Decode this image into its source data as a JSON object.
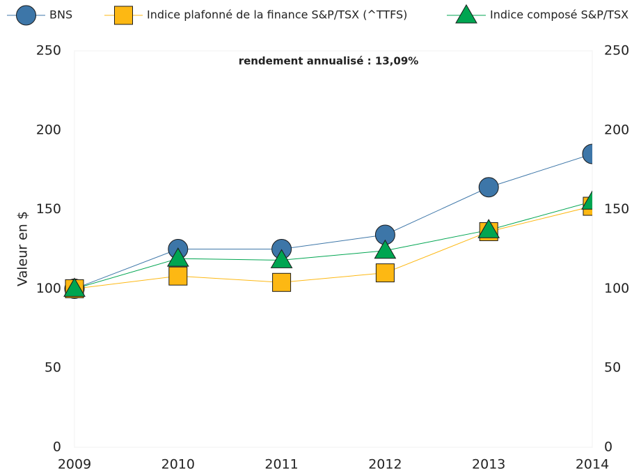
{
  "chart_data": {
    "type": "line",
    "annotation": "rendement annualisé : 13,09%",
    "ylabel": "Valeur en $",
    "categories": [
      "2009",
      "2010",
      "2011",
      "2012",
      "2013",
      "2014"
    ],
    "series": [
      {
        "name": "BNS",
        "color": "#3d76a8",
        "marker": "circle",
        "values": [
          100,
          125,
          125,
          134,
          164,
          185
        ]
      },
      {
        "name": "Indice plafonné de la finance S&P/TSX (^TTFS)",
        "color": "#fdb813",
        "marker": "square",
        "values": [
          100,
          108,
          104,
          110,
          136,
          152
        ]
      },
      {
        "name": "Indice composé S&P/TSX",
        "color": "#00a551",
        "marker": "triangle",
        "values": [
          100,
          119,
          118,
          124,
          137,
          155
        ]
      }
    ],
    "ylim": [
      0,
      250
    ],
    "yticks": [
      0,
      50,
      100,
      150,
      200,
      250
    ],
    "y2lim": [
      0,
      250
    ],
    "y2ticks": [
      0,
      50,
      100,
      150,
      200,
      250
    ],
    "legend": "top"
  }
}
